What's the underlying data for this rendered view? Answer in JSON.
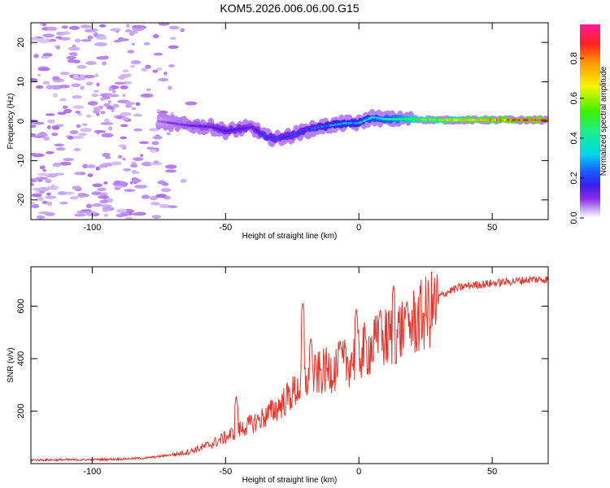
{
  "title": "KOM5.2026.006.06.00.G15",
  "colors": {
    "trace": "#e8332b",
    "weak_blob": "#c9a8f7",
    "axis": "#000000"
  },
  "chart_data": [
    {
      "type": "heatmap",
      "title": "KOM5.2026.006.06.00.G15",
      "xlabel": "Height of straight line (km)",
      "ylabel": "Frequency (Hz)",
      "xlim": [
        -123,
        71
      ],
      "ylim": [
        -25,
        25
      ],
      "x_ticks": [
        -100,
        -50,
        0,
        50
      ],
      "y_ticks": [
        -20,
        -10,
        0,
        10,
        20
      ],
      "colorbar": {
        "label": "Normalized spectral amplitude",
        "range": [
          0,
          0.97
        ],
        "ticks": [
          "0.0",
          "0.2",
          "0.4",
          "0.6",
          "0.8"
        ],
        "colormap": "rainbow (purple-blue-cyan-green-yellow-orange-red-magenta)"
      },
      "ridge": {
        "description": "dominant frequency ridge",
        "x": [
          -75,
          -65,
          -55,
          -50,
          -45,
          -40,
          -35,
          -30,
          -25,
          -20,
          -15,
          -10,
          -5,
          0,
          5,
          10,
          15,
          20,
          30,
          40,
          50,
          60,
          70
        ],
        "y": [
          0,
          -1,
          -1.5,
          -2.5,
          -2,
          -1.5,
          -4,
          -4.5,
          -3.5,
          -2.5,
          -1.5,
          -1,
          -0.5,
          -0.5,
          1,
          0.5,
          0.5,
          0.5,
          0.3,
          0.3,
          0.3,
          0.3,
          0.3
        ],
        "amplitude": [
          0.08,
          0.12,
          0.15,
          0.18,
          0.18,
          0.15,
          0.2,
          0.2,
          0.2,
          0.22,
          0.25,
          0.28,
          0.3,
          0.3,
          0.35,
          0.4,
          0.45,
          0.55,
          0.7,
          0.8,
          0.85,
          0.9,
          0.95
        ]
      },
      "noise": {
        "x_range": [
          -123,
          -60
        ],
        "y_range": [
          -25,
          25
        ],
        "amplitude": 0.03
      }
    },
    {
      "type": "line",
      "xlabel": "Height of straight line (km)",
      "ylabel": "SNR (v/v)",
      "xlim": [
        -123,
        71
      ],
      "ylim": [
        0,
        750
      ],
      "x_ticks": [
        -100,
        -50,
        0,
        50
      ],
      "y_ticks": [
        200,
        400,
        600
      ],
      "series": [
        {
          "name": "SNR",
          "x": [
            -123,
            -110,
            -100,
            -90,
            -80,
            -75,
            -70,
            -65,
            -60,
            -55,
            -50,
            -45,
            -40,
            -35,
            -30,
            -25,
            -20,
            -15,
            -10,
            -5,
            0,
            5,
            10,
            15,
            20,
            25,
            30,
            35,
            40,
            50,
            60,
            65,
            71
          ],
          "y": [
            15,
            15,
            16,
            18,
            22,
            28,
            35,
            45,
            60,
            80,
            105,
            135,
            160,
            190,
            230,
            280,
            330,
            360,
            380,
            400,
            440,
            470,
            500,
            530,
            560,
            600,
            640,
            665,
            680,
            690,
            700,
            705,
            705
          ],
          "spikes": [
            {
              "x": -46,
              "y": 260
            },
            {
              "x": -21,
              "y": 615
            },
            {
              "x": -18,
              "y": 480
            },
            {
              "x": -7,
              "y": 470
            },
            {
              "x": -1,
              "y": 590
            },
            {
              "x": 8,
              "y": 590
            },
            {
              "x": 13,
              "y": 680
            },
            {
              "x": 18,
              "y": 620
            }
          ]
        }
      ]
    }
  ]
}
